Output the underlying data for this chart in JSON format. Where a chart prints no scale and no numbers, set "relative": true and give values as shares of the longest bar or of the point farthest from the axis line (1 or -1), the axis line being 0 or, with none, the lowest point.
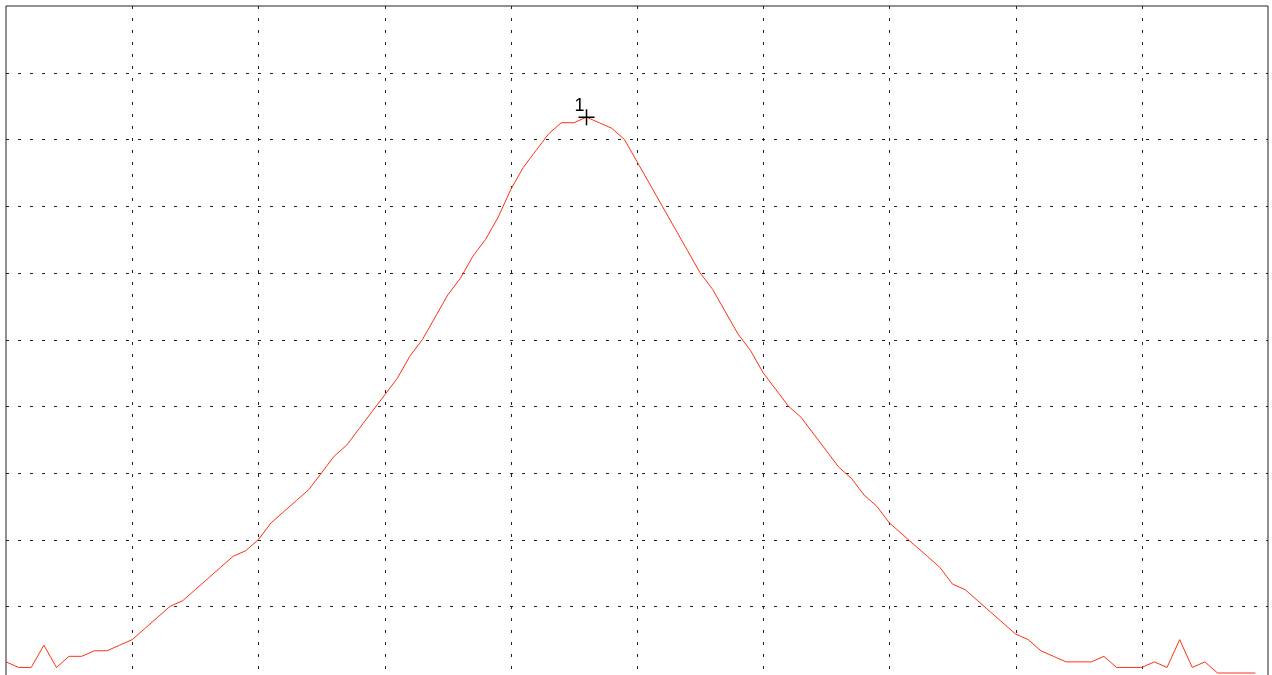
{
  "chart_data": {
    "type": "line",
    "relative": true,
    "grid": true,
    "legend": false,
    "marker": "none",
    "line_style": "solid",
    "categories": [
      null,
      null,
      null,
      null,
      null,
      null,
      null,
      null,
      null,
      null,
      null,
      null,
      null,
      null,
      null,
      null,
      null,
      null,
      null,
      null,
      null,
      null,
      null,
      null,
      null,
      null,
      null,
      null,
      null,
      null,
      null,
      null,
      null,
      null,
      null,
      null,
      null,
      null,
      null,
      null,
      null,
      null,
      null,
      null,
      null,
      null,
      null,
      null,
      null,
      null,
      null,
      null,
      null,
      null,
      null,
      null,
      null,
      null,
      null,
      null,
      null,
      null,
      null,
      null,
      null,
      null,
      null,
      null,
      null,
      null,
      null,
      null,
      null,
      null,
      null,
      null,
      null,
      null,
      null,
      null,
      null,
      null,
      null,
      null,
      null,
      null,
      null,
      null,
      null,
      null,
      null,
      null,
      null,
      null,
      null,
      null,
      null,
      null,
      null,
      null,
      null
    ],
    "series": [
      {
        "color": "#ff3010",
        "values": [
          0.02,
          0.01,
          0.01,
          0.05,
          0.01,
          0.03,
          0.03,
          0.04,
          0.04,
          0.05,
          0.06,
          0.08,
          0.1,
          0.12,
          0.13,
          0.15,
          0.17,
          0.19,
          0.21,
          0.22,
          0.24,
          0.27,
          0.29,
          0.31,
          0.33,
          0.36,
          0.39,
          0.41,
          0.44,
          0.47,
          0.5,
          0.53,
          0.57,
          0.6,
          0.64,
          0.68,
          0.71,
          0.75,
          0.78,
          0.82,
          0.87,
          0.91,
          0.94,
          0.97,
          0.99,
          0.99,
          1,
          0.99,
          0.98,
          0.96,
          0.92,
          0.88,
          0.84,
          0.8,
          0.76,
          0.72,
          0.69,
          0.65,
          0.61,
          0.58,
          0.54,
          0.51,
          0.48,
          0.46,
          0.43,
          0.4,
          0.37,
          0.35,
          0.32,
          0.3,
          0.27,
          0.25,
          0.23,
          0.21,
          0.19,
          0.16,
          0.15,
          0.13,
          0.11,
          0.09,
          0.07,
          0.06,
          0.04,
          0.03,
          0.02,
          0.02,
          0.02,
          0.03,
          0.01,
          0.01,
          0.01,
          0.02,
          0.01,
          0.06,
          0.01,
          0.02,
          0,
          0,
          0,
          0,
          null
        ]
      }
    ],
    "annotations": [
      {
        "text": "1",
        "y": 1
      }
    ]
  }
}
